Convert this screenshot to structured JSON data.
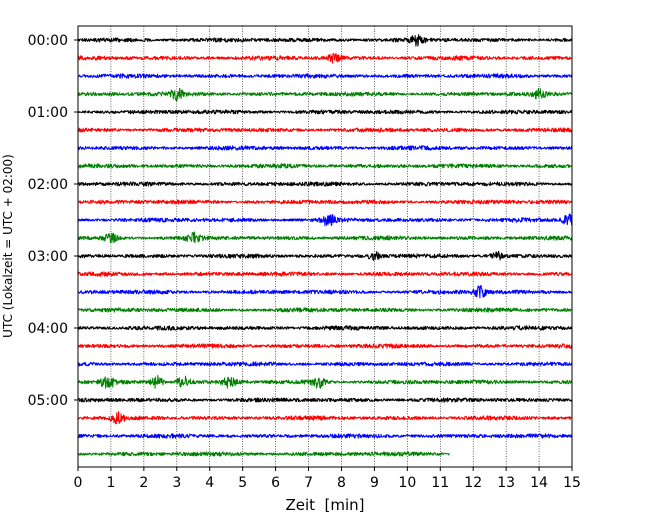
{
  "chart_data": {
    "type": "line",
    "title": "",
    "xlabel": "Zeit  [min]",
    "ylabel": "UTC (Lokalzeit = UTC + 02:00)",
    "xlim": [
      0,
      15
    ],
    "x_ticks": [
      "0",
      "1",
      "2",
      "3",
      "4",
      "5",
      "6",
      "7",
      "8",
      "9",
      "10",
      "11",
      "12",
      "13",
      "14",
      "15"
    ],
    "y_tick_labels": [
      "00:00",
      "01:00",
      "02:00",
      "03:00",
      "04:00",
      "05:00"
    ],
    "grid": "vertical dotted",
    "colors": [
      "#000000",
      "#ff0000",
      "#0000ff",
      "#008000"
    ],
    "trace_interval_min": 15,
    "traces": [
      {
        "start": "00:00",
        "color": "#000000",
        "end_min": 15
      },
      {
        "start": "00:15",
        "color": "#ff0000",
        "end_min": 15
      },
      {
        "start": "00:30",
        "color": "#0000ff",
        "end_min": 15
      },
      {
        "start": "00:45",
        "color": "#008000",
        "end_min": 15
      },
      {
        "start": "01:00",
        "color": "#000000",
        "end_min": 15
      },
      {
        "start": "01:15",
        "color": "#ff0000",
        "end_min": 15
      },
      {
        "start": "01:30",
        "color": "#0000ff",
        "end_min": 15
      },
      {
        "start": "01:45",
        "color": "#008000",
        "end_min": 15
      },
      {
        "start": "02:00",
        "color": "#000000",
        "end_min": 15
      },
      {
        "start": "02:15",
        "color": "#ff0000",
        "end_min": 15
      },
      {
        "start": "02:30",
        "color": "#0000ff",
        "end_min": 15
      },
      {
        "start": "02:45",
        "color": "#008000",
        "end_min": 15
      },
      {
        "start": "03:00",
        "color": "#000000",
        "end_min": 15
      },
      {
        "start": "03:15",
        "color": "#ff0000",
        "end_min": 15
      },
      {
        "start": "03:30",
        "color": "#0000ff",
        "end_min": 15
      },
      {
        "start": "03:45",
        "color": "#008000",
        "end_min": 15
      },
      {
        "start": "04:00",
        "color": "#000000",
        "end_min": 15
      },
      {
        "start": "04:15",
        "color": "#ff0000",
        "end_min": 15
      },
      {
        "start": "04:30",
        "color": "#0000ff",
        "end_min": 15
      },
      {
        "start": "04:45",
        "color": "#008000",
        "end_min": 15
      },
      {
        "start": "05:00",
        "color": "#000000",
        "end_min": 15
      },
      {
        "start": "05:15",
        "color": "#ff0000",
        "end_min": 15
      },
      {
        "start": "05:30",
        "color": "#0000ff",
        "end_min": 15
      },
      {
        "start": "05:45",
        "color": "#008000",
        "end_min": 11.3
      }
    ],
    "bursts": [
      {
        "trace": "00:45",
        "min": 3.0,
        "amp": 1.6
      },
      {
        "trace": "00:45",
        "min": 14.0,
        "amp": 1.3
      },
      {
        "trace": "00:15",
        "min": 7.8,
        "amp": 1.5
      },
      {
        "trace": "00:00",
        "min": 10.3,
        "amp": 1.4
      },
      {
        "trace": "02:30",
        "min": 7.6,
        "amp": 1.8
      },
      {
        "trace": "02:30",
        "min": 14.9,
        "amp": 1.6
      },
      {
        "trace": "02:45",
        "min": 3.5,
        "amp": 1.5
      },
      {
        "trace": "02:45",
        "min": 1.0,
        "amp": 1.3
      },
      {
        "trace": "03:00",
        "min": 9.0,
        "amp": 1.3
      },
      {
        "trace": "03:00",
        "min": 12.7,
        "amp": 1.3
      },
      {
        "trace": "03:30",
        "min": 12.2,
        "amp": 1.7
      },
      {
        "trace": "04:45",
        "min": 0.9,
        "amp": 2.2
      },
      {
        "trace": "04:45",
        "min": 2.4,
        "amp": 1.8
      },
      {
        "trace": "04:45",
        "min": 3.2,
        "amp": 2.0
      },
      {
        "trace": "04:45",
        "min": 4.6,
        "amp": 1.6
      },
      {
        "trace": "04:45",
        "min": 7.3,
        "amp": 1.8
      },
      {
        "trace": "05:15",
        "min": 1.2,
        "amp": 1.4
      }
    ]
  }
}
